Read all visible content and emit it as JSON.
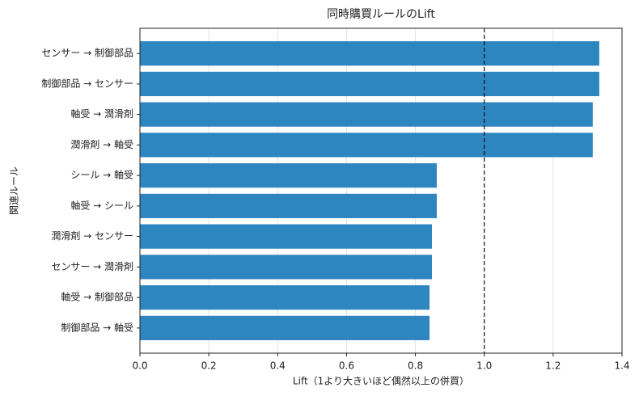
{
  "chart_data": {
    "type": "barh",
    "title": "同時購買ルールのLift",
    "xlabel": "Lift（1より大きいほど偶然以上の併買）",
    "ylabel": "関連ルール",
    "categories": [
      "センサー → 制御部品",
      "制御部品 → センサー",
      "軸受 → 潤滑剤",
      "潤滑剤 → 軸受",
      "シール → 軸受",
      "軸受 → シール",
      "潤滑剤 → センサー",
      "センサー → 潤滑剤",
      "軸受 → 制御部品",
      "制御部品 → 軸受"
    ],
    "values": [
      1.334,
      1.334,
      1.315,
      1.315,
      0.862,
      0.862,
      0.848,
      0.848,
      0.841,
      0.841
    ],
    "color": "#2e86c1",
    "xlim": [
      0,
      1.4
    ],
    "xticks": [
      {
        "value": 0,
        "label": "0.0"
      },
      0.2,
      0.4,
      0.6,
      0.8,
      {
        "value": 1,
        "label": "1.0"
      },
      1.2,
      1.4
    ],
    "reference_line": 1,
    "grid": true
  }
}
